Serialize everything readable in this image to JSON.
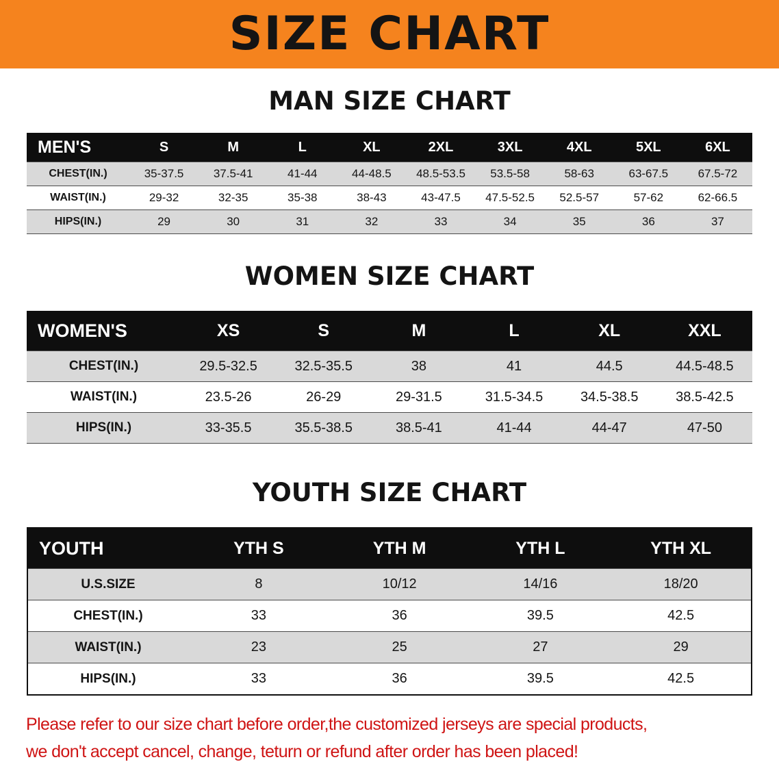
{
  "banner": {
    "title": "SIZE CHART"
  },
  "chart_data": [
    {
      "type": "table",
      "title": "MAN SIZE CHART",
      "corner_label": "MEN'S",
      "columns": [
        "S",
        "M",
        "L",
        "XL",
        "2XL",
        "3XL",
        "4XL",
        "5XL",
        "6XL"
      ],
      "row_labels": [
        "CHEST(IN.)",
        "WAIST(IN.)",
        "HIPS(IN.)"
      ],
      "rows": [
        [
          "35-37.5",
          "37.5-41",
          "41-44",
          "44-48.5",
          "48.5-53.5",
          "53.5-58",
          "58-63",
          "63-67.5",
          "67.5-72"
        ],
        [
          "29-32",
          "32-35",
          "35-38",
          "38-43",
          "43-47.5",
          "47.5-52.5",
          "52.5-57",
          "57-62",
          "62-66.5"
        ],
        [
          "29",
          "30",
          "31",
          "32",
          "33",
          "34",
          "35",
          "36",
          "37"
        ]
      ]
    },
    {
      "type": "table",
      "title": "WOMEN SIZE CHART",
      "corner_label": "WOMEN'S",
      "columns": [
        "XS",
        "S",
        "M",
        "L",
        "XL",
        "XXL"
      ],
      "row_labels": [
        "CHEST(IN.)",
        "WAIST(IN.)",
        "HIPS(IN.)"
      ],
      "rows": [
        [
          "29.5-32.5",
          "32.5-35.5",
          "38",
          "41",
          "44.5",
          "44.5-48.5"
        ],
        [
          "23.5-26",
          "26-29",
          "29-31.5",
          "31.5-34.5",
          "34.5-38.5",
          "38.5-42.5"
        ],
        [
          "33-35.5",
          "35.5-38.5",
          "38.5-41",
          "41-44",
          "44-47",
          "47-50"
        ]
      ]
    },
    {
      "type": "table",
      "title": "YOUTH SIZE CHART",
      "corner_label": "YOUTH",
      "columns": [
        "YTH S",
        "YTH M",
        "YTH L",
        "YTH XL"
      ],
      "row_labels": [
        "U.S.SIZE",
        "CHEST(IN.)",
        "WAIST(IN.)",
        "HIPS(IN.)"
      ],
      "rows": [
        [
          "8",
          "10/12",
          "14/16",
          "18/20"
        ],
        [
          "33",
          "36",
          "39.5",
          "42.5"
        ],
        [
          "23",
          "25",
          "27",
          "29"
        ],
        [
          "33",
          "36",
          "39.5",
          "42.5"
        ]
      ]
    }
  ],
  "footer": {
    "line1": "Please refer to our size chart before order,the customized jerseys are special products,",
    "line2": "we don't accept cancel, change, teturn or refund after order has been placed!"
  },
  "colors": {
    "banner_bg": "#f5831e",
    "table_header_bg": "#0e0e0e",
    "row_alt_bg": "#d9d9d9",
    "note_red": "#cf1414",
    "title_text": "#141414"
  }
}
